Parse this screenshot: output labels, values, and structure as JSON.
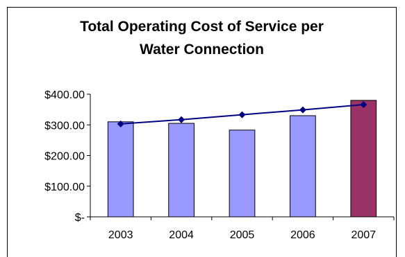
{
  "chart_data": {
    "type": "bar",
    "title_lines": [
      "Total Operating Cost of Service per",
      "Water Connection"
    ],
    "xlabel": "",
    "ylabel": "",
    "categories": [
      "2003",
      "2004",
      "2005",
      "2006",
      "2007"
    ],
    "series": [
      {
        "type": "bar",
        "values": [
          310,
          305,
          283,
          330,
          380
        ],
        "colors": [
          "#9999ff",
          "#9999ff",
          "#9999ff",
          "#9999ff",
          "#993366"
        ]
      },
      {
        "type": "line",
        "values": [
          303,
          317,
          333,
          349,
          366
        ],
        "color": "#000080",
        "marker": "diamond"
      }
    ],
    "ylim": [
      0,
      400
    ],
    "yticks": [
      0,
      100,
      200,
      300,
      400
    ],
    "ytick_labels": [
      "$-",
      "$100.00",
      "$200.00",
      "$300.00",
      "$400.00"
    ],
    "grid": false,
    "legend": "none"
  }
}
